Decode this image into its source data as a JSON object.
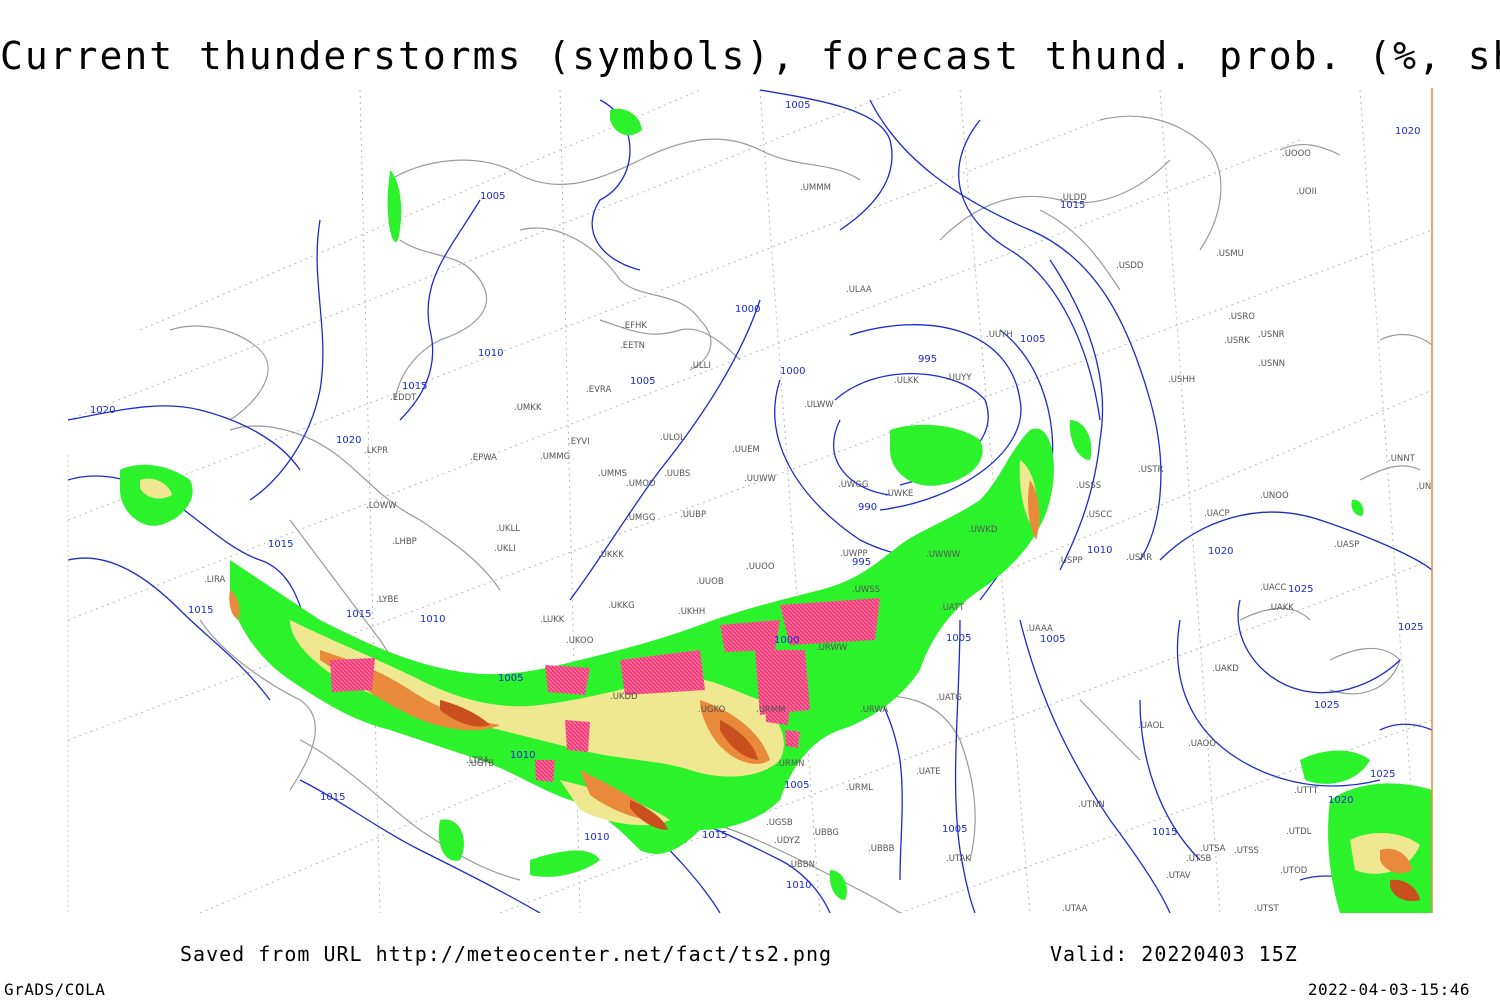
{
  "title": "Current thunderstorms (symbols), forecast thund. prob. (%, shaded)",
  "footer": {
    "saved_text": "Saved from URL http://meteocenter.net/fact/ts2.png",
    "valid_text": "Valid: 20220403 15Z",
    "software": "GrADS/COLA",
    "timestamp": "2022-04-03-15:46"
  },
  "colors": {
    "isobar": "#1a2bd0",
    "coastline": "#9a9a9a",
    "grid": "#b8b8b8",
    "prob_low": "#2cf22c",
    "prob_mid": "#f0e890",
    "prob_high": "#e88a3a",
    "prob_max": "#c9501e",
    "storm_symbol": "#f03c78"
  },
  "isobar_labels": [
    "1005",
    "1005",
    "1010",
    "1015",
    "1020",
    "1020",
    "1015",
    "1015",
    "1015",
    "1010",
    "1005",
    "1005",
    "1000",
    "1000",
    "995",
    "995",
    "990",
    "1005",
    "1015",
    "1020",
    "1010",
    "1005",
    "1010",
    "1015",
    "1010",
    "1015",
    "1005",
    "1005",
    "1010",
    "1025",
    "1025",
    "1025",
    "1020",
    "1025",
    "1020",
    "1015",
    "1005",
    "1000"
  ],
  "stations": [
    "UMMM",
    "EFHK",
    "EETN",
    "ULLI",
    "EVRA",
    "ULOL",
    "UMKK",
    "EYVI",
    "UMMG",
    "UMMS",
    "UMOO",
    "UUBS",
    "UUEM",
    "UUWW",
    "ULAA",
    "UUYH",
    "ULKK",
    "UUYY",
    "ULWW",
    "UWGG",
    "UWKE",
    "UWKD",
    "UWPP",
    "UWSS",
    "UWWW",
    "USSS",
    "USCC",
    "USRR",
    "USPP",
    "UUOB",
    "UUOO",
    "UKKK",
    "UKHH",
    "UKKG",
    "UKOO",
    "UKDD",
    "LUKK",
    "UKLL",
    "UKLI",
    "UMGG",
    "UUBP",
    "URWA",
    "URWW",
    "URMM",
    "URMN",
    "UGTB",
    "UGKO",
    "UBBB",
    "UATG",
    "UATE",
    "UATT",
    "UAAA",
    "UACC",
    "UAKK",
    "UAKD",
    "UAOO",
    "UAOL",
    "USTR",
    "UNOO",
    "UACP",
    "UASP",
    "UNNT",
    "UNBB",
    "USMU",
    "USRO",
    "USRK",
    "USNR",
    "USNN",
    "USHH",
    "USDD",
    "ULDD",
    "UOOO",
    "UOII",
    "LKPR",
    "LOWW",
    "LHBP",
    "LYBE",
    "LIRA",
    "EDDT",
    "EPWA",
    "LTBA",
    "UTTT",
    "UTDL",
    "UTSA",
    "UTSS",
    "UTSB",
    "UTAV",
    "UTAK",
    "UTNN",
    "UTAA",
    "UTST",
    "UTOD",
    "URML",
    "UBBN",
    "UDYZ",
    "UBBG",
    "UGSB"
  ],
  "legend_none": ""
}
